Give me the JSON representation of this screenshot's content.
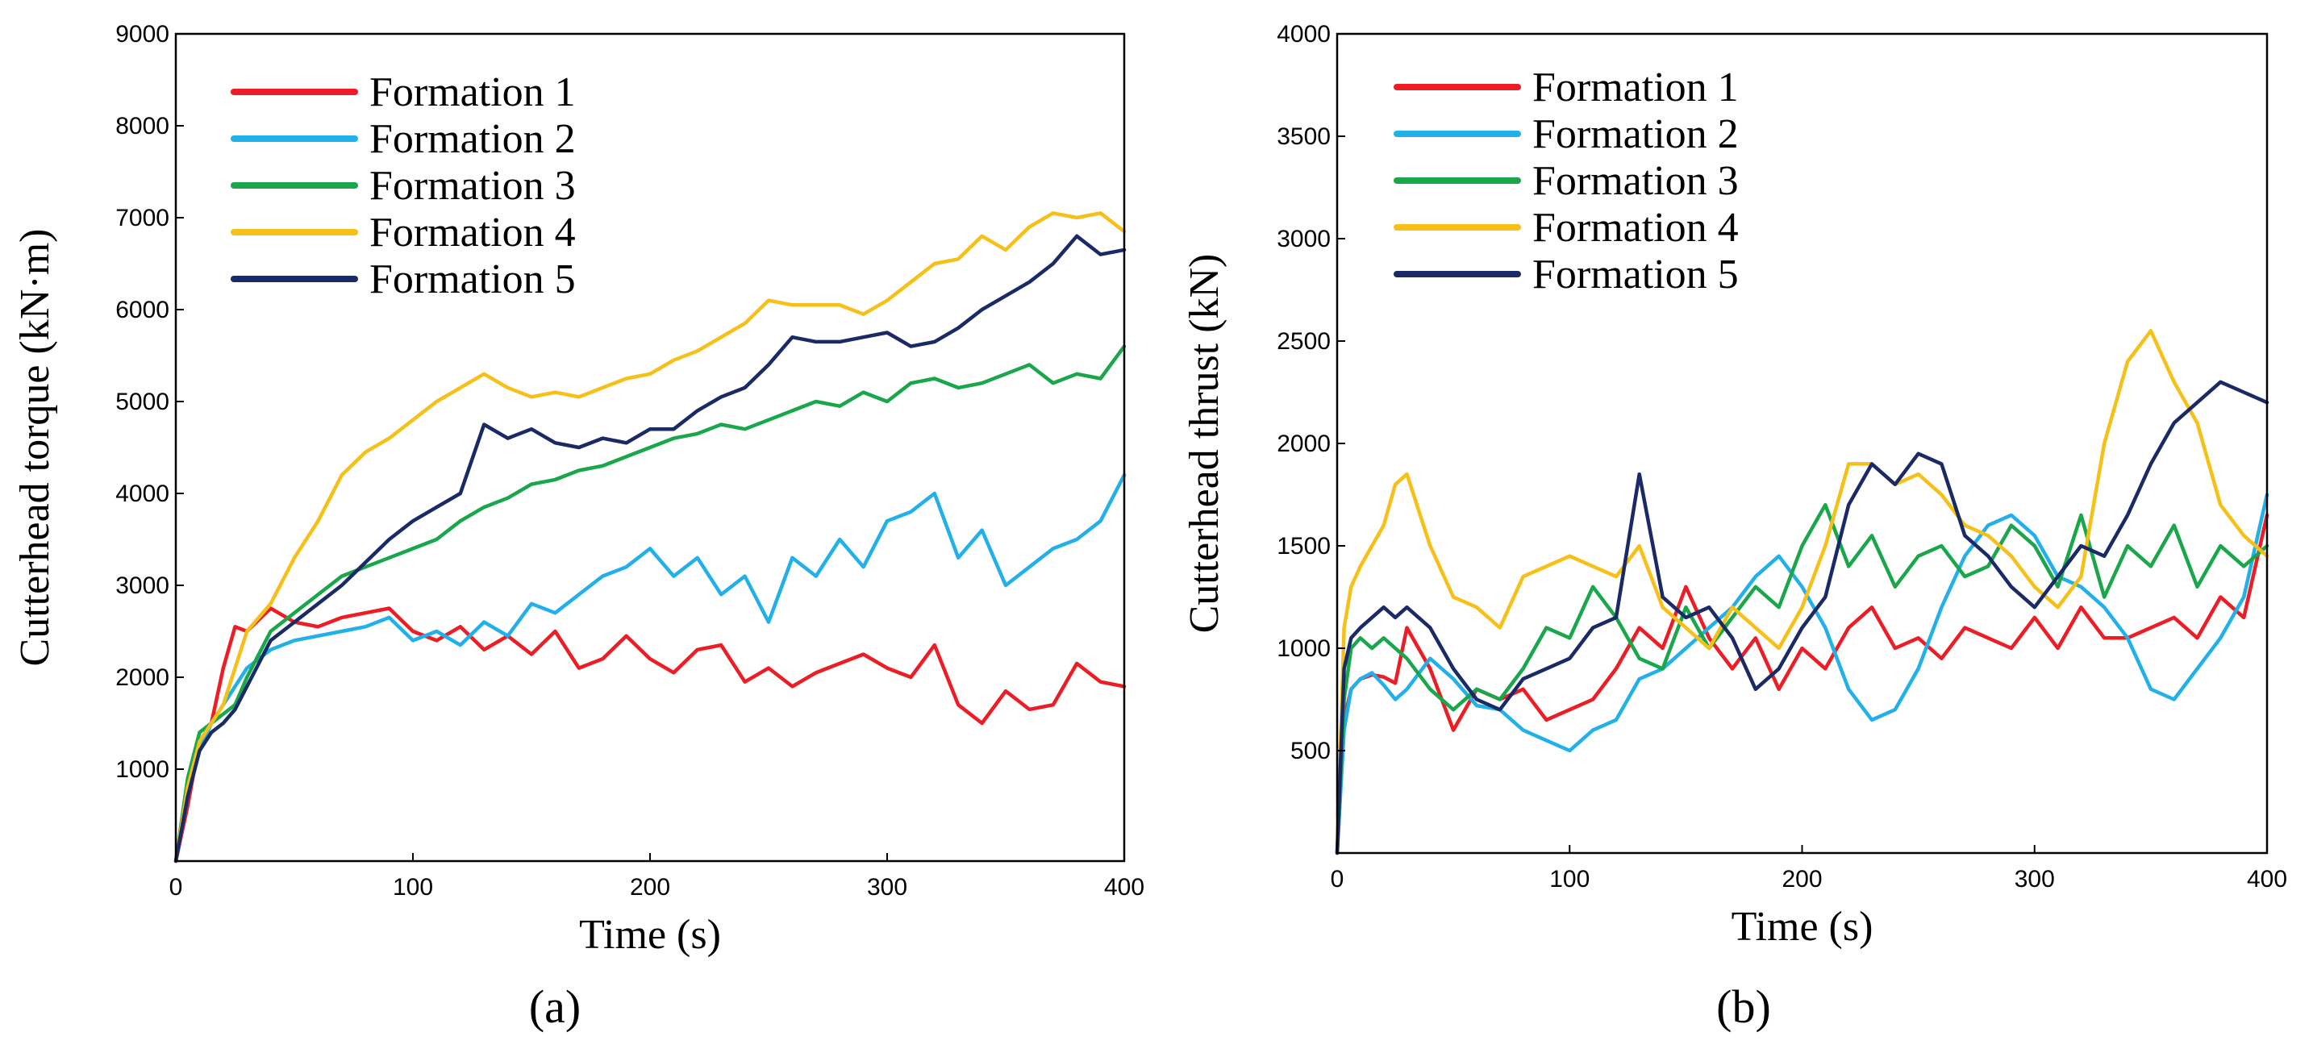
{
  "chart_data": [
    {
      "type": "line",
      "panel_label": "(a)",
      "title": "",
      "xlabel": "Time (s)",
      "ylabel": "Cutterhead torque (kN·m)",
      "xlim": [
        0,
        400
      ],
      "ylim": [
        0,
        9000
      ],
      "xticks": [
        0,
        100,
        200,
        300,
        400
      ],
      "yticks": [
        1000,
        2000,
        3000,
        4000,
        5000,
        6000,
        7000,
        8000,
        9000
      ],
      "grid": false,
      "legend_position": "top-left",
      "x": [
        0,
        5,
        10,
        15,
        20,
        25,
        30,
        40,
        50,
        60,
        70,
        80,
        90,
        100,
        110,
        120,
        130,
        140,
        150,
        160,
        170,
        180,
        190,
        200,
        210,
        220,
        230,
        240,
        250,
        260,
        270,
        280,
        290,
        300,
        310,
        320,
        330,
        340,
        350,
        360,
        370,
        380,
        390,
        400
      ],
      "series": [
        {
          "name": "Formation 1",
          "color": "#ee1c25",
          "values": [
            0,
            600,
            1300,
            1500,
            2100,
            2550,
            2500,
            2750,
            2600,
            2550,
            2650,
            2700,
            2750,
            2500,
            2400,
            2550,
            2300,
            2450,
            2250,
            2500,
            2100,
            2200,
            2450,
            2200,
            2050,
            2300,
            2350,
            1950,
            2100,
            1900,
            2050,
            2150,
            2250,
            2100,
            2000,
            2350,
            1700,
            1500,
            1850,
            1650,
            1700,
            2150,
            1950,
            1900
          ]
        },
        {
          "name": "Formation 2",
          "color": "#21b0ea",
          "values": [
            0,
            700,
            1200,
            1500,
            1700,
            1900,
            2100,
            2300,
            2400,
            2450,
            2500,
            2550,
            2650,
            2400,
            2500,
            2350,
            2600,
            2450,
            2800,
            2700,
            2900,
            3100,
            3200,
            3400,
            3100,
            3300,
            2900,
            3100,
            2600,
            3300,
            3100,
            3500,
            3200,
            3700,
            3800,
            4000,
            3300,
            3600,
            3000,
            3200,
            3400,
            3500,
            3700,
            4200
          ]
        },
        {
          "name": "Formation 3",
          "color": "#1aa64b",
          "values": [
            0,
            900,
            1400,
            1500,
            1600,
            1700,
            2000,
            2500,
            2700,
            2900,
            3100,
            3200,
            3300,
            3400,
            3500,
            3700,
            3850,
            3950,
            4100,
            4150,
            4250,
            4300,
            4400,
            4500,
            4600,
            4650,
            4750,
            4700,
            4800,
            4900,
            5000,
            4950,
            5100,
            5000,
            5200,
            5250,
            5150,
            5200,
            5300,
            5400,
            5200,
            5300,
            5250,
            5600
          ]
        },
        {
          "name": "Formation 4",
          "color": "#f7c018",
          "values": [
            0,
            800,
            1300,
            1500,
            1700,
            2100,
            2500,
            2800,
            3300,
            3700,
            4200,
            4450,
            4600,
            4800,
            5000,
            5150,
            5300,
            5150,
            5050,
            5100,
            5050,
            5150,
            5250,
            5300,
            5450,
            5550,
            5700,
            5850,
            6100,
            6050,
            6050,
            6050,
            5950,
            6100,
            6300,
            6500,
            6550,
            6800,
            6650,
            6900,
            7050,
            7000,
            7050,
            6850
          ]
        },
        {
          "name": "Formation 5",
          "color": "#1a2a66",
          "values": [
            0,
            700,
            1200,
            1400,
            1500,
            1650,
            1900,
            2400,
            2600,
            2800,
            3000,
            3250,
            3500,
            3700,
            3850,
            4000,
            4750,
            4600,
            4700,
            4550,
            4500,
            4600,
            4550,
            4700,
            4700,
            4900,
            5050,
            5150,
            5400,
            5700,
            5650,
            5650,
            5700,
            5750,
            5600,
            5650,
            5800,
            6000,
            6150,
            6300,
            6500,
            6800,
            6600,
            6650
          ]
        }
      ]
    },
    {
      "type": "line",
      "panel_label": "(b)",
      "title": "",
      "xlabel": "Time (s)",
      "ylabel": "Cutterhead thrust (kN)",
      "xlim": [
        0,
        400
      ],
      "ylim": [
        0,
        4000
      ],
      "xticks": [
        0,
        100,
        200,
        300,
        400
      ],
      "yticks": [
        500,
        1000,
        1500,
        2000,
        2500,
        3000,
        3500,
        4000
      ],
      "grid": false,
      "legend_position": "top-left",
      "x": [
        0,
        3,
        6,
        10,
        15,
        20,
        25,
        30,
        40,
        50,
        60,
        70,
        80,
        90,
        100,
        110,
        120,
        130,
        140,
        150,
        160,
        170,
        180,
        190,
        200,
        210,
        220,
        230,
        240,
        250,
        260,
        270,
        280,
        290,
        300,
        310,
        320,
        330,
        340,
        350,
        360,
        370,
        380,
        390,
        400
      ],
      "series": [
        {
          "name": "Formation 1",
          "color": "#ee1c25",
          "values": [
            0,
            650,
            800,
            850,
            870,
            860,
            830,
            1100,
            900,
            600,
            800,
            750,
            800,
            650,
            700,
            750,
            900,
            1100,
            1000,
            1300,
            1050,
            900,
            1050,
            800,
            1000,
            900,
            1100,
            1200,
            1000,
            1050,
            950,
            1100,
            1050,
            1000,
            1150,
            1000,
            1200,
            1050,
            1050,
            1100,
            1150,
            1050,
            1250,
            1150,
            1650
          ]
        },
        {
          "name": "Formation 2",
          "color": "#21b0ea",
          "values": [
            0,
            600,
            800,
            850,
            880,
            820,
            750,
            800,
            950,
            850,
            720,
            700,
            600,
            550,
            500,
            600,
            650,
            850,
            900,
            1000,
            1100,
            1200,
            1350,
            1450,
            1300,
            1100,
            800,
            650,
            700,
            900,
            1200,
            1450,
            1600,
            1650,
            1550,
            1350,
            1300,
            1200,
            1050,
            800,
            750,
            900,
            1050,
            1250,
            1750
          ]
        },
        {
          "name": "Formation 3",
          "color": "#1aa64b",
          "values": [
            0,
            750,
            1000,
            1050,
            1000,
            1050,
            1000,
            950,
            800,
            700,
            800,
            750,
            900,
            1100,
            1050,
            1300,
            1150,
            950,
            900,
            1200,
            1000,
            1150,
            1300,
            1200,
            1500,
            1700,
            1400,
            1550,
            1300,
            1450,
            1500,
            1350,
            1400,
            1600,
            1500,
            1300,
            1650,
            1250,
            1500,
            1400,
            1600,
            1300,
            1500,
            1400,
            1500
          ]
        },
        {
          "name": "Formation 4",
          "color": "#f7c018",
          "values": [
            0,
            1100,
            1300,
            1400,
            1500,
            1600,
            1800,
            1850,
            1500,
            1250,
            1200,
            1100,
            1350,
            1400,
            1450,
            1400,
            1350,
            1500,
            1200,
            1100,
            1000,
            1200,
            1100,
            1000,
            1200,
            1500,
            1900,
            1900,
            1800,
            1850,
            1750,
            1600,
            1550,
            1450,
            1300,
            1200,
            1350,
            2000,
            2400,
            2550,
            2300,
            2100,
            1700,
            1550,
            1450
          ]
        },
        {
          "name": "Formation 5",
          "color": "#1a2a66",
          "values": [
            0,
            900,
            1050,
            1100,
            1150,
            1200,
            1150,
            1200,
            1100,
            900,
            750,
            700,
            850,
            900,
            950,
            1100,
            1150,
            1850,
            1250,
            1150,
            1200,
            1050,
            800,
            900,
            1100,
            1250,
            1700,
            1900,
            1800,
            1950,
            1900,
            1550,
            1450,
            1300,
            1200,
            1350,
            1500,
            1450,
            1650,
            1900,
            2100,
            2200,
            2300,
            2250,
            2200
          ]
        }
      ]
    }
  ]
}
